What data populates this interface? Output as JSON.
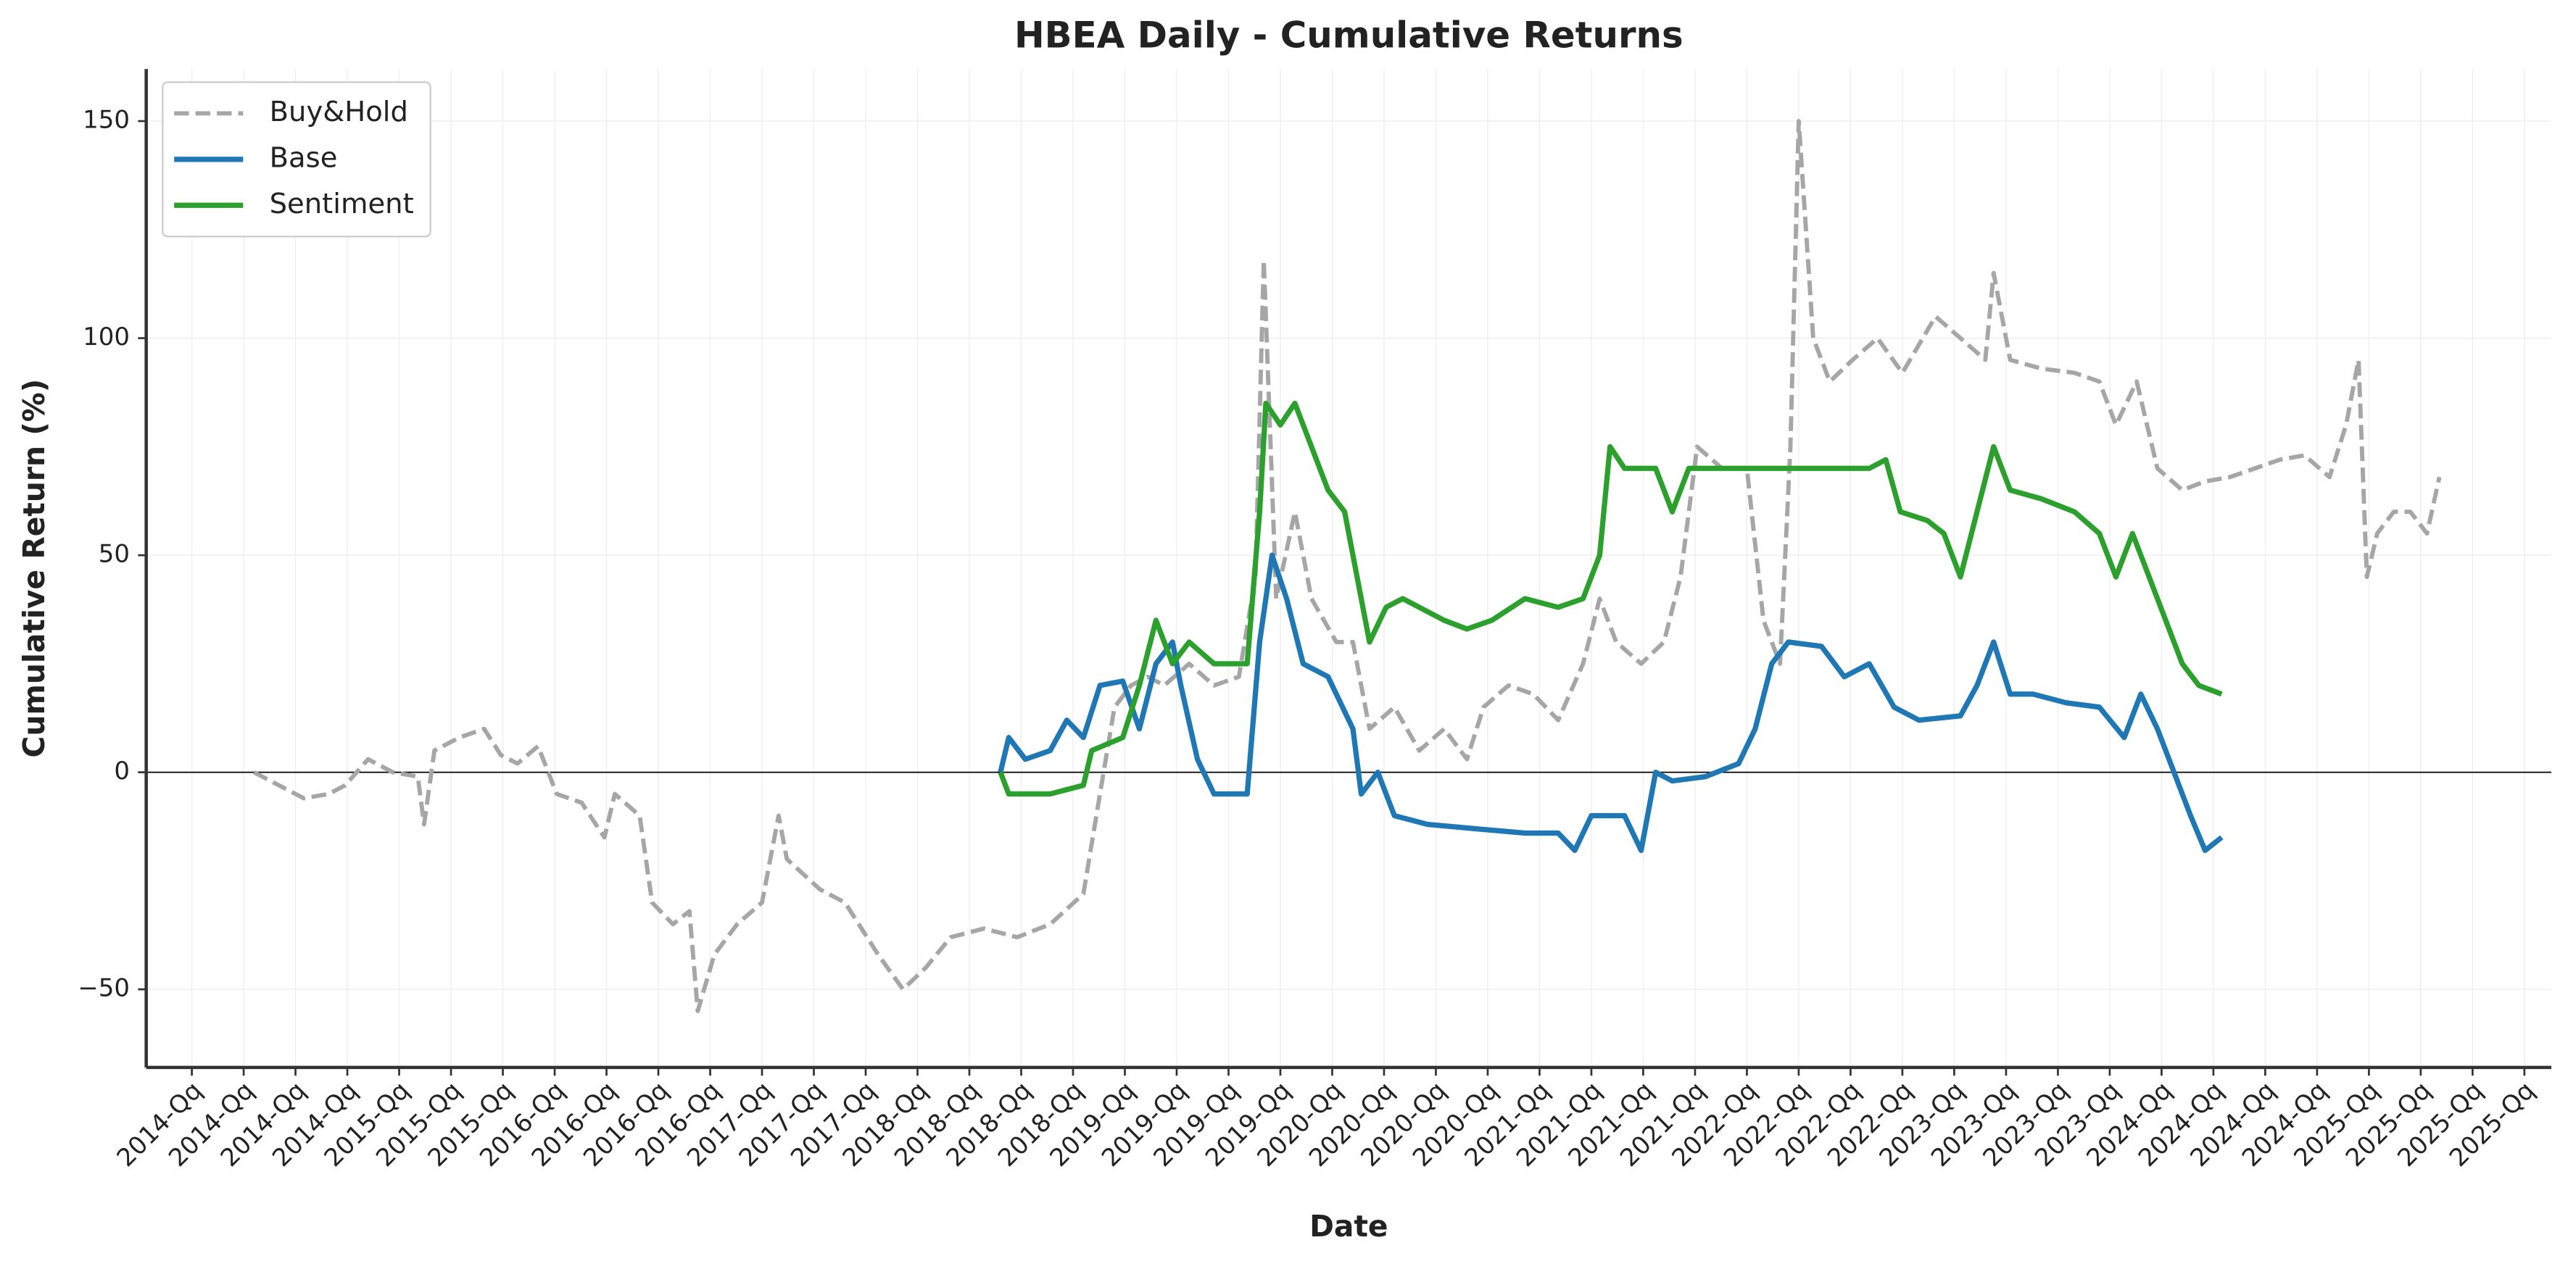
{
  "chart_data": {
    "type": "line",
    "title": "HBEA Daily - Cumulative Returns",
    "xlabel": "Date",
    "ylabel": "Cumulative Return (%)",
    "xlim": [
      2014.03,
      2025.63
    ],
    "ylim": [
      -68,
      162
    ],
    "xticks": [
      {
        "value": 2014.25,
        "label": "2014-Qq"
      },
      {
        "value": 2014.5,
        "label": "2014-Qq"
      },
      {
        "value": 2014.75,
        "label": "2014-Qq"
      },
      {
        "value": 2015.0,
        "label": "2014-Qq"
      },
      {
        "value": 2015.25,
        "label": "2015-Qq"
      },
      {
        "value": 2015.5,
        "label": "2015-Qq"
      },
      {
        "value": 2015.75,
        "label": "2015-Qq"
      },
      {
        "value": 2016.0,
        "label": "2016-Qq"
      },
      {
        "value": 2016.25,
        "label": "2016-Qq"
      },
      {
        "value": 2016.5,
        "label": "2016-Qq"
      },
      {
        "value": 2016.75,
        "label": "2016-Qq"
      },
      {
        "value": 2017.0,
        "label": "2017-Qq"
      },
      {
        "value": 2017.25,
        "label": "2017-Qq"
      },
      {
        "value": 2017.5,
        "label": "2017-Qq"
      },
      {
        "value": 2017.75,
        "label": "2018-Qq"
      },
      {
        "value": 2018.0,
        "label": "2018-Qq"
      },
      {
        "value": 2018.25,
        "label": "2018-Qq"
      },
      {
        "value": 2018.5,
        "label": "2018-Qq"
      },
      {
        "value": 2018.75,
        "label": "2019-Qq"
      },
      {
        "value": 2019.0,
        "label": "2019-Qq"
      },
      {
        "value": 2019.25,
        "label": "2019-Qq"
      },
      {
        "value": 2019.5,
        "label": "2019-Qq"
      },
      {
        "value": 2019.75,
        "label": "2020-Qq"
      },
      {
        "value": 2020.0,
        "label": "2020-Qq"
      },
      {
        "value": 2020.25,
        "label": "2020-Qq"
      },
      {
        "value": 2020.5,
        "label": "2020-Qq"
      },
      {
        "value": 2020.75,
        "label": "2021-Qq"
      },
      {
        "value": 2021.0,
        "label": "2021-Qq"
      },
      {
        "value": 2021.25,
        "label": "2021-Qq"
      },
      {
        "value": 2021.5,
        "label": "2021-Qq"
      },
      {
        "value": 2021.75,
        "label": "2022-Qq"
      },
      {
        "value": 2022.0,
        "label": "2022-Qq"
      },
      {
        "value": 2022.25,
        "label": "2022-Qq"
      },
      {
        "value": 2022.5,
        "label": "2022-Qq"
      },
      {
        "value": 2022.75,
        "label": "2023-Qq"
      },
      {
        "value": 2023.0,
        "label": "2023-Qq"
      },
      {
        "value": 2023.25,
        "label": "2023-Qq"
      },
      {
        "value": 2023.5,
        "label": "2023-Qq"
      },
      {
        "value": 2023.75,
        "label": "2024-Qq"
      },
      {
        "value": 2024.0,
        "label": "2024-Qq"
      },
      {
        "value": 2024.25,
        "label": "2024-Qq"
      },
      {
        "value": 2024.5,
        "label": "2024-Qq"
      },
      {
        "value": 2024.75,
        "label": "2025-Qq"
      },
      {
        "value": 2025.0,
        "label": "2025-Qq"
      },
      {
        "value": 2025.25,
        "label": "2025-Qq"
      },
      {
        "value": 2025.5,
        "label": "2025-Qq"
      }
    ],
    "yticks": [
      {
        "value": -50,
        "label": "−50"
      },
      0,
      50,
      100,
      150
    ],
    "grid": true,
    "reference_line": 0,
    "legend": "upper left",
    "series": [
      {
        "name": "Buy&Hold",
        "color": "#a6a6a6",
        "dash": true,
        "x": [
          2014.55,
          2014.67,
          2014.79,
          2014.91,
          2014.99,
          2015.1,
          2015.22,
          2015.34,
          2015.37,
          2015.42,
          2015.54,
          2015.66,
          2015.74,
          2015.82,
          2015.92,
          2016.01,
          2016.13,
          2016.24,
          2016.29,
          2016.41,
          2016.47,
          2016.57,
          2016.65,
          2016.69,
          2016.77,
          2016.88,
          2017.0,
          2017.08,
          2017.12,
          2017.28,
          2017.4,
          2017.56,
          2017.68,
          2017.79,
          2017.91,
          2018.07,
          2018.23,
          2018.39,
          2018.55,
          2018.63,
          2018.7,
          2018.78,
          2018.86,
          2018.94,
          2019.06,
          2019.18,
          2019.3,
          2019.38,
          2019.42,
          2019.48,
          2019.57,
          2019.65,
          2019.77,
          2019.85,
          2019.93,
          2020.05,
          2020.17,
          2020.29,
          2020.4,
          2020.48,
          2020.6,
          2020.72,
          2020.84,
          2020.96,
          2021.04,
          2021.12,
          2021.24,
          2021.35,
          2021.43,
          2021.51,
          2021.63,
          2021.75,
          2021.83,
          2021.91,
          2021.96,
          2022.0,
          2022.07,
          2022.15,
          2022.26,
          2022.38,
          2022.5,
          2022.66,
          2022.78,
          2022.9,
          2022.94,
          2023.02,
          2023.17,
          2023.33,
          2023.45,
          2023.53,
          2023.63,
          2023.73,
          2023.85,
          2023.96,
          2024.08,
          2024.2,
          2024.32,
          2024.44,
          2024.56,
          2024.64,
          2024.7,
          2024.74,
          2024.79,
          2024.87,
          2024.95,
          2025.03,
          2025.09
        ],
        "values": [
          0,
          -3,
          -6,
          -5,
          -3,
          3,
          0,
          -1,
          -12,
          5,
          8,
          10,
          4,
          2,
          6,
          -5,
          -7,
          -15,
          -5,
          -10,
          -30,
          -35,
          -32,
          -55,
          -42,
          -35,
          -30,
          -10,
          -20,
          -27,
          -30,
          -42,
          -50,
          -45,
          -38,
          -36,
          -38,
          -35,
          -28,
          -5,
          15,
          20,
          22,
          20,
          25,
          20,
          22,
          45,
          118,
          40,
          60,
          40,
          30,
          30,
          10,
          15,
          5,
          10,
          3,
          15,
          20,
          18,
          12,
          25,
          40,
          30,
          25,
          30,
          45,
          75,
          70,
          70,
          35,
          25,
          75,
          150,
          100,
          90,
          95,
          100,
          92,
          105,
          100,
          95,
          115,
          95,
          93,
          92,
          90,
          80,
          90,
          70,
          65,
          67,
          68,
          70,
          72,
          73,
          68,
          80,
          95,
          45,
          55,
          60,
          60,
          55,
          68
        ]
      },
      {
        "name": "Base",
        "color": "#1f77b4",
        "dash": false,
        "x": [
          2018.15,
          2018.19,
          2018.27,
          2018.39,
          2018.47,
          2018.55,
          2018.63,
          2018.74,
          2018.82,
          2018.9,
          2018.98,
          2019.02,
          2019.1,
          2019.18,
          2019.34,
          2019.4,
          2019.46,
          2019.53,
          2019.61,
          2019.73,
          2019.85,
          2019.89,
          2019.97,
          2020.05,
          2020.21,
          2020.44,
          2020.68,
          2020.84,
          2020.92,
          2021.0,
          2021.16,
          2021.24,
          2021.31,
          2021.39,
          2021.55,
          2021.71,
          2021.79,
          2021.87,
          2021.95,
          2022.11,
          2022.22,
          2022.34,
          2022.46,
          2022.58,
          2022.78,
          2022.86,
          2022.94,
          2023.02,
          2023.13,
          2023.29,
          2023.45,
          2023.57,
          2023.65,
          2023.73,
          2023.81,
          2023.89,
          2023.96,
          2024.04
        ],
        "values": [
          0,
          8,
          3,
          5,
          12,
          8,
          20,
          21,
          10,
          25,
          30,
          20,
          3,
          -5,
          -5,
          30,
          50,
          40,
          25,
          22,
          10,
          -5,
          0,
          -10,
          -12,
          -13,
          -14,
          -14,
          -18,
          -10,
          -10,
          -18,
          0,
          -2,
          -1,
          2,
          10,
          25,
          30,
          29,
          22,
          25,
          15,
          12,
          13,
          20,
          30,
          18,
          18,
          16,
          15,
          8,
          18,
          10,
          0,
          -10,
          -18,
          -15
        ]
      },
      {
        "name": "Sentiment",
        "color": "#2ca02c",
        "dash": false,
        "x": [
          2018.15,
          2018.19,
          2018.39,
          2018.55,
          2018.59,
          2018.74,
          2018.82,
          2018.9,
          2018.98,
          2019.06,
          2019.18,
          2019.34,
          2019.4,
          2019.43,
          2019.5,
          2019.57,
          2019.65,
          2019.73,
          2019.81,
          2019.85,
          2019.93,
          2020.01,
          2020.09,
          2020.29,
          2020.4,
          2020.52,
          2020.68,
          2020.84,
          2020.96,
          2021.04,
          2021.09,
          2021.16,
          2021.31,
          2021.39,
          2021.47,
          2021.87,
          2022.34,
          2022.42,
          2022.49,
          2022.62,
          2022.7,
          2022.78,
          2022.86,
          2022.94,
          2023.02,
          2023.17,
          2023.33,
          2023.45,
          2023.53,
          2023.61,
          2023.69,
          2023.77,
          2023.85,
          2023.93,
          2024.04
        ],
        "values": [
          0,
          -5,
          -5,
          -3,
          5,
          8,
          20,
          35,
          25,
          30,
          25,
          25,
          60,
          85,
          80,
          85,
          75,
          65,
          60,
          50,
          30,
          38,
          40,
          35,
          33,
          35,
          40,
          38,
          40,
          50,
          75,
          70,
          70,
          60,
          70,
          70,
          70,
          72,
          60,
          58,
          55,
          45,
          60,
          75,
          65,
          63,
          60,
          55,
          45,
          55,
          45,
          35,
          25,
          20,
          18
        ]
      }
    ]
  }
}
